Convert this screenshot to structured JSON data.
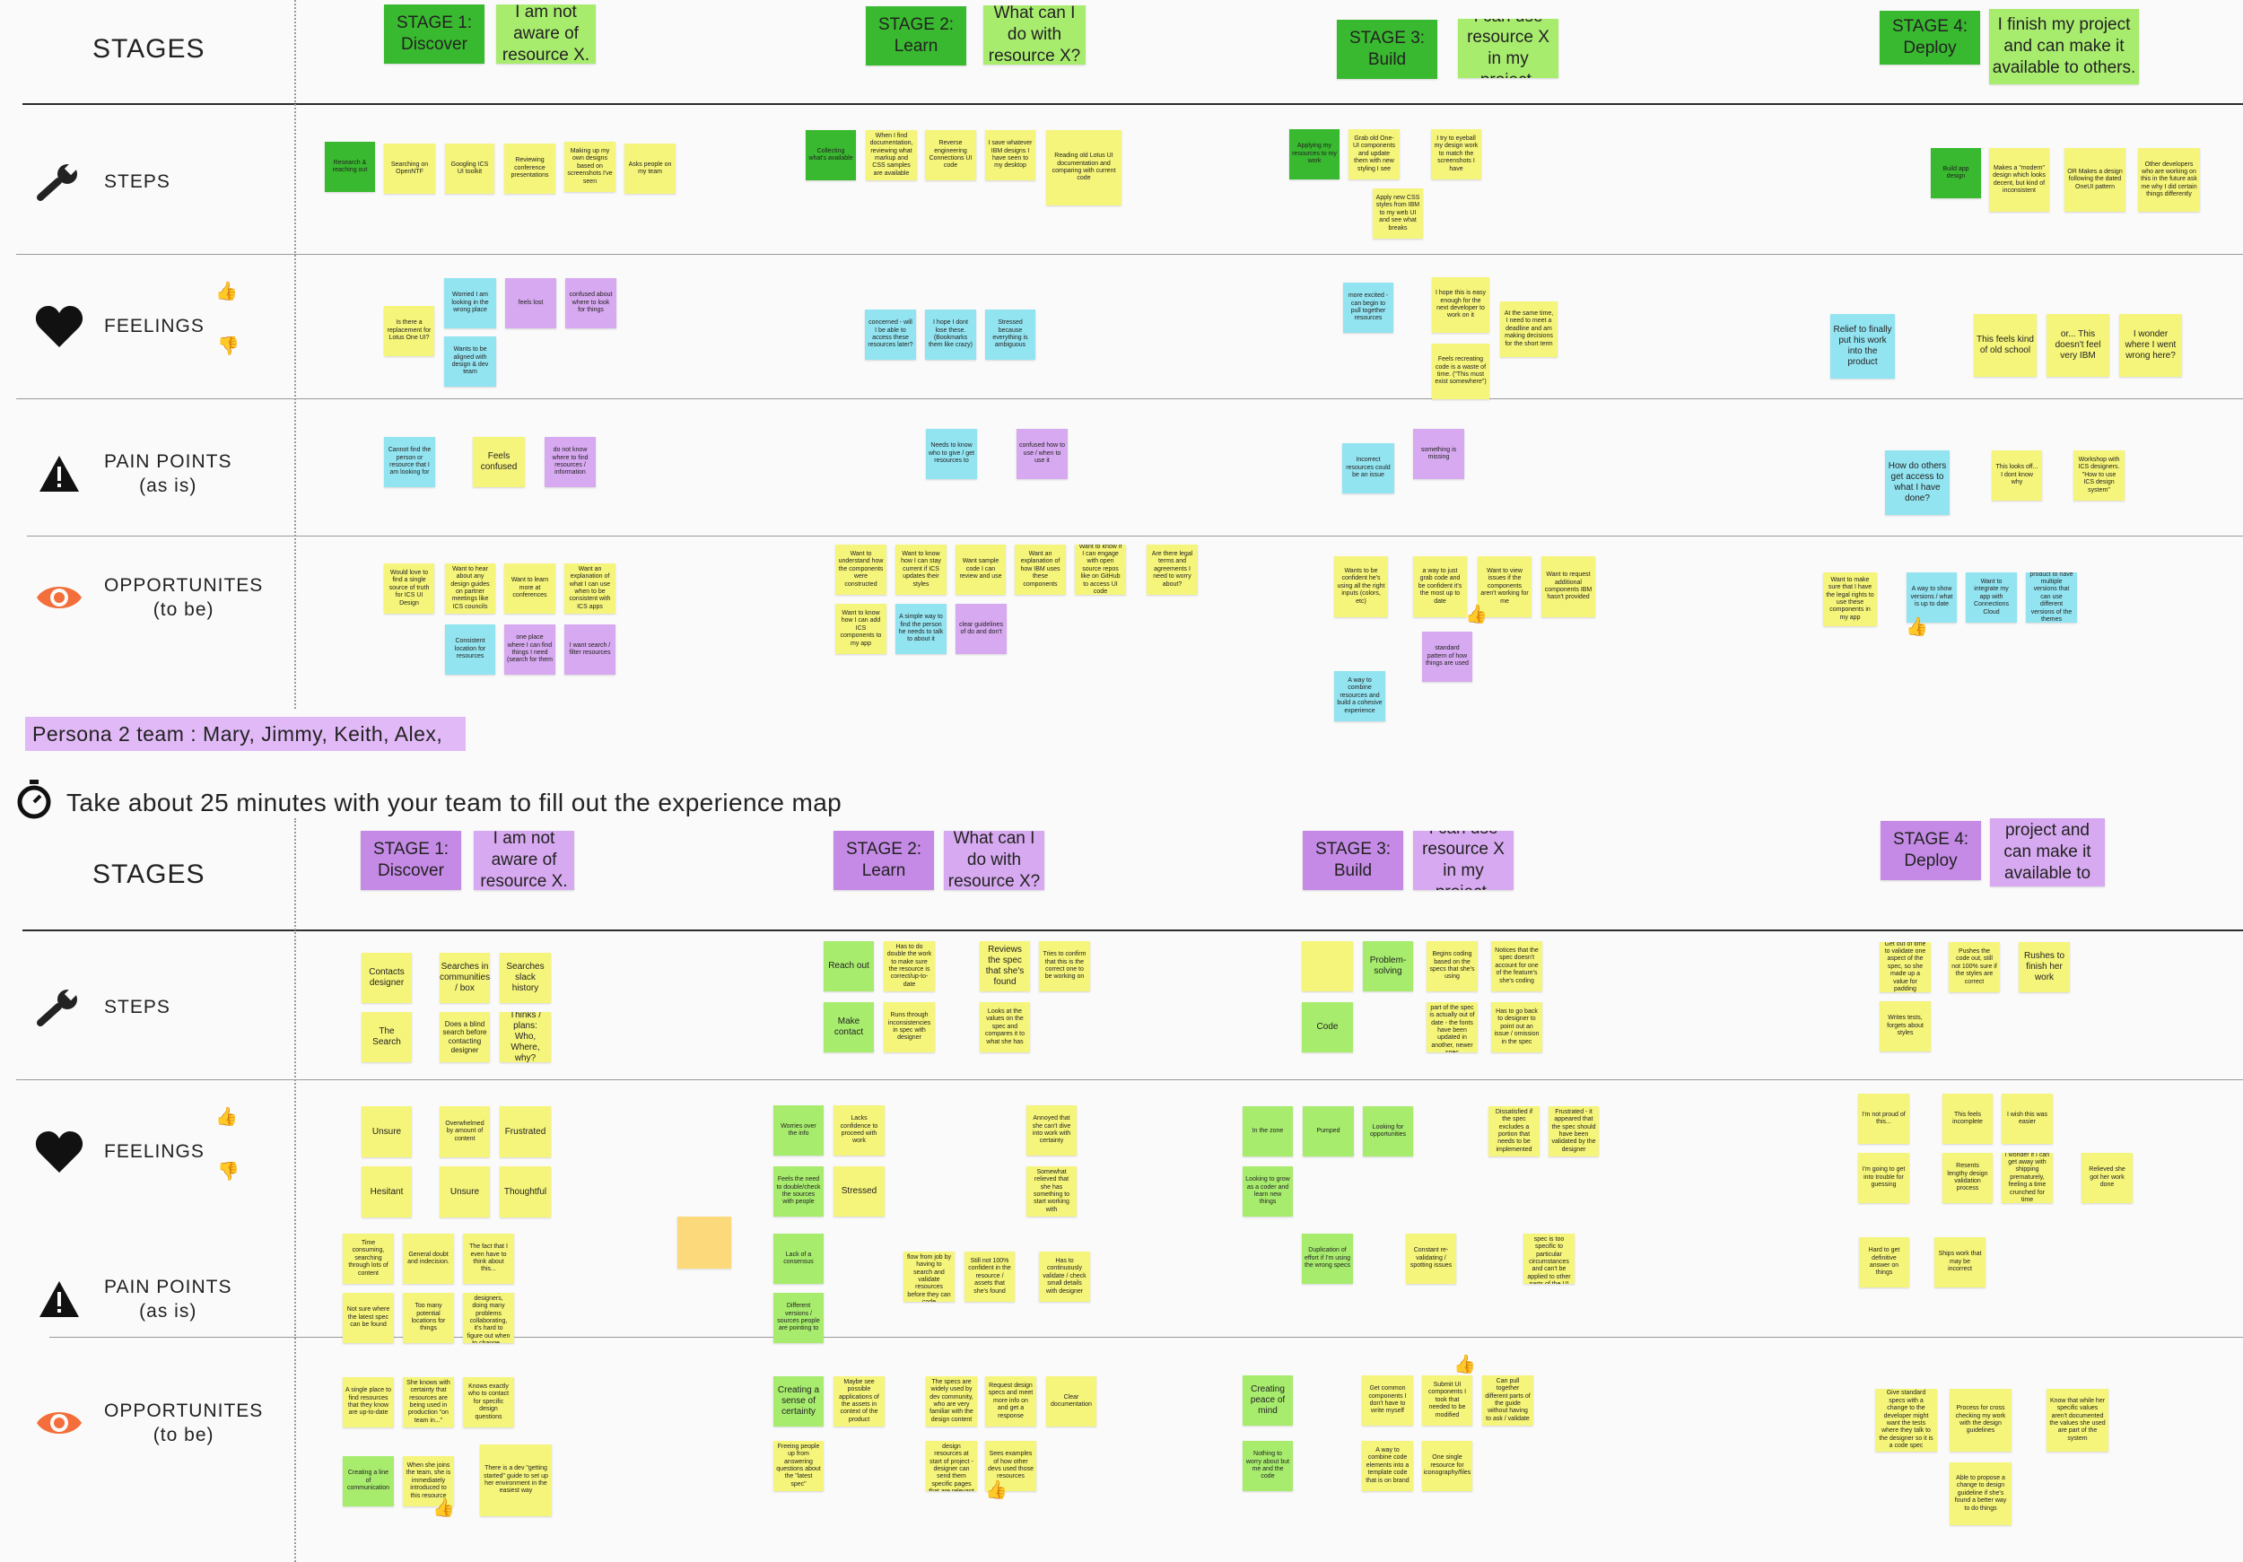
{
  "row_labels": {
    "stages": "STAGES",
    "steps": "STEPS",
    "feelings": "FEELINGS",
    "pain_points": "PAIN POINTS",
    "pain_points_sub": "(as is)",
    "opportunities": "OPPORTUNITES",
    "opportunities_sub": "(to be)"
  },
  "persona_label": "Persona 2 team : Mary, Jimmy, Keith, Alex,",
  "instruction": "Take about 25 minutes with your team to fill out the experience map",
  "colors": {
    "green": "#39b92f",
    "light_green": "#a8ec6e",
    "yellow": "#f6f57b",
    "blue": "#93e4f1",
    "purple": "#d7a9f0",
    "dark_purple": "#c58ae6",
    "orange": "#fcd97a"
  },
  "icons": {
    "steps": "wrench-icon",
    "feelings": "heart-icon",
    "pain_points": "warning-icon",
    "opportunities": "eye-icon",
    "timer": "stopwatch-icon",
    "thumb_up": "thumbs-up-icon",
    "thumb_down": "thumbs-down-icon"
  },
  "map1": {
    "stage_notes": [
      {
        "text": "STAGE 1: Discover"
      },
      {
        "text": "I am not aware of resource X."
      },
      {
        "text": "STAGE 2: Learn"
      },
      {
        "text": "What can I do with resource X?"
      },
      {
        "text": "STAGE 3: Build"
      },
      {
        "text": "I can use resource X in my project."
      },
      {
        "text": "STAGE 4: Deploy"
      },
      {
        "text": "I finish my project and can make it available to others."
      }
    ],
    "steps": [
      {
        "text": "Research & reaching out"
      },
      {
        "text": "Searching on OpenNTF"
      },
      {
        "text": "Googling ICS UI toolkit"
      },
      {
        "text": "Reviewing conference presentations"
      },
      {
        "text": "Making up my own designs based on screenshots I've seen"
      },
      {
        "text": "Asks people on my team"
      },
      {
        "text": "Collecting what's available"
      },
      {
        "text": "When I find documentation, reviewing what markup and CSS samples are available"
      },
      {
        "text": "Reverse engineering Connections UI code"
      },
      {
        "text": "I save whatever IBM designs I have seen to my desktop"
      },
      {
        "text": "Reading old Lotus UI documentation and comparing with current code"
      },
      {
        "text": "Applying my resources to my work"
      },
      {
        "text": "Grab old One-UI components and update them with new styling I see"
      },
      {
        "text": "I try to eyeball my design work to match the screenshots I have"
      },
      {
        "text": "Apply new CSS styles from IBM to my web UI and see what breaks"
      },
      {
        "text": "Build app design"
      },
      {
        "text": "Makes a \"modern\" design which looks decent, but kind of inconsistent"
      },
      {
        "text": "OR Makes a design following the dated OneUI pattern"
      },
      {
        "text": "Other developers who are working on this in the future ask me why I did certain things differently"
      }
    ],
    "feelings": [
      {
        "text": "Is there a replacement for Lotus One UI?"
      },
      {
        "text": "Worried I am looking in the wrong place"
      },
      {
        "text": "Wants to be aligned with design & dev team"
      },
      {
        "text": "feels lost"
      },
      {
        "text": "confused about where to look for things"
      },
      {
        "text": "concerned - will I be able to access these resources later?"
      },
      {
        "text": "I hope I dont lose these. (Bookmarks them like crazy)"
      },
      {
        "text": "Stressed because everything is ambiguous"
      },
      {
        "text": "more excited - can begin to pull together resources"
      },
      {
        "text": "I hope this is easy enough for the next developer to work on it"
      },
      {
        "text": "At the same time, I need to meet a deadline and am making decisions for the short term"
      },
      {
        "text": "Feels recreating code is a waste of time. (\"This must exist somewhere\")"
      },
      {
        "text": "Relief to finally put his work into the product"
      },
      {
        "text": "This feels kind of old school"
      },
      {
        "text": "or... This doesn't feel very IBM"
      },
      {
        "text": "I wonder where I went wrong here?"
      }
    ],
    "pain_points": [
      {
        "text": "Cannot find the person or resource that I am looking for"
      },
      {
        "text": "Feels confused"
      },
      {
        "text": "do not know where to find resources / information"
      },
      {
        "text": "Needs to know who to give / get resources to"
      },
      {
        "text": "confused how to use / when to use it"
      },
      {
        "text": "Incorrect resources could be an issue"
      },
      {
        "text": "something is missing"
      },
      {
        "text": "How do others get access to what I have done?"
      },
      {
        "text": "This looks off... I dont know why"
      },
      {
        "text": "Workshop with ICS designers. \"How to use ICS design system\""
      }
    ],
    "opportunities": [
      {
        "text": "Would love to find a single source of truth for ICS UI Design"
      },
      {
        "text": "Want to hear about any design guides on partner meetings like ICS councils"
      },
      {
        "text": "Want to learn more at conferences"
      },
      {
        "text": "Want an explanation of what I can use when to be consistent with ICS apps"
      },
      {
        "text": "Consistent location for resources"
      },
      {
        "text": "one place where I can find things I need (search for them"
      },
      {
        "text": "I want search / filter resources"
      },
      {
        "text": "Want to understand how the components were constructed"
      },
      {
        "text": "Want to know how I can stay current if ICS updates their styles"
      },
      {
        "text": "Want sample code I can review and use"
      },
      {
        "text": "Want an explanation of how IBM uses these components"
      },
      {
        "text": "Want to know if I can engage with open source repos like on GitHub to access UI code"
      },
      {
        "text": "Are there legal terms and agreements I need to worry about?"
      },
      {
        "text": "Want to know how I can add ICS components to my app"
      },
      {
        "text": "A simple way to find the person he needs to talk to about it"
      },
      {
        "text": "clear guidelines of do and don't"
      },
      {
        "text": "Wants to be confident he's using all the right inputs (colors, etc)"
      },
      {
        "text": "a way to just grab code and be confident it's the most up to date"
      },
      {
        "text": "Want to view issues if the components aren't working for me"
      },
      {
        "text": "Want to request additional components IBM hasn't provided"
      },
      {
        "text": "standard pattern of how things are used"
      },
      {
        "text": "A way to combine resources and build a cohesive experience"
      },
      {
        "text": "Want to make sure that I have the legal rights to use these components in my app"
      },
      {
        "text": "A way to show versions / what is up to date"
      },
      {
        "text": "Want to integrate my app with Connections Cloud"
      },
      {
        "text": "I may want product to have multiple versions that can use different versions of the themes available"
      }
    ]
  },
  "map2": {
    "stage_notes": [
      {
        "text": "STAGE 1: Discover"
      },
      {
        "text": "I am not aware of resource X."
      },
      {
        "text": "STAGE 2: Learn"
      },
      {
        "text": "What can I do with resource X?"
      },
      {
        "text": "STAGE 3: Build"
      },
      {
        "text": "I can use resource X in my project."
      },
      {
        "text": "STAGE 4: Deploy"
      },
      {
        "text": "I finish my project and can make it available to others."
      }
    ],
    "steps": [
      {
        "text": "Contacts designer"
      },
      {
        "text": "Searches in communities / box"
      },
      {
        "text": "Searches slack history"
      },
      {
        "text": "The Search"
      },
      {
        "text": "Does a blind search before contacting designer"
      },
      {
        "text": "Thinks / plans: Who, Where, why?"
      },
      {
        "text": "Reach out"
      },
      {
        "text": "Has to do double the work to make sure the resource is correct/up-to-date"
      },
      {
        "text": "Reviews the spec that she's found"
      },
      {
        "text": "Tries to confirm that this is the correct one to be working on"
      },
      {
        "text": "Make contact"
      },
      {
        "text": "Runs through inconsistencies in spec with designer"
      },
      {
        "text": "Looks at the values on the spec and compares it to what she has"
      },
      {
        "text": ""
      },
      {
        "text": "Problem-solving"
      },
      {
        "text": "Begins coding based on the specs that she's using"
      },
      {
        "text": "Notices that the spec doesn't account for one of the feature's she's coding"
      },
      {
        "text": "Code"
      },
      {
        "text": "Realizes that part of the spec is actually out of date - the fonts have been updated in another, newer spec"
      },
      {
        "text": "Has to go back to designer to point out an issue / omission in the spec"
      },
      {
        "text": "Get out of time to validate one aspect of the spec, so she made up a value for padding"
      },
      {
        "text": "Pushes the code out, still not 100% sure if the styles are correct"
      },
      {
        "text": "Rushes to finish her work"
      },
      {
        "text": "Writes tests, forgets about styles"
      }
    ],
    "feelings": [
      {
        "text": "Unsure"
      },
      {
        "text": "Overwhelmed by amount of content"
      },
      {
        "text": "Frustrated"
      },
      {
        "text": "Hesitant"
      },
      {
        "text": "Unsure"
      },
      {
        "text": "Thoughtful"
      },
      {
        "text": "Worries over the info"
      },
      {
        "text": "Lacks confidence to proceed with work"
      },
      {
        "text": "Annoyed that she can't dive into work with certainty"
      },
      {
        "text": "Feels the need to double/check the sources with people"
      },
      {
        "text": "Stressed"
      },
      {
        "text": "Somewhat relieved that she has something to start working with"
      },
      {
        "text": "In the zone"
      },
      {
        "text": "Pumped"
      },
      {
        "text": "Looking for opportunities"
      },
      {
        "text": "Dissatisfied if the spec excludes a portion that needs to be implemented"
      },
      {
        "text": "Frustrated - it appeared that the spec should have been validated by the designer"
      },
      {
        "text": "Looking to grow as a coder and learn new things"
      },
      {
        "text": "I'm not proud of this..."
      },
      {
        "text": "This feels incomplete"
      },
      {
        "text": "I wish this was easier"
      },
      {
        "text": "I'm going to get into trouble for guessing"
      },
      {
        "text": "Resents lengthy design validation process"
      },
      {
        "text": "I wonder if I can get away with shipping prematurely, feeling a time crunched for time"
      },
      {
        "text": "Relieved she got her work done"
      }
    ],
    "pain_points": [
      {
        "text": "Time consuming, searching through lots of content"
      },
      {
        "text": "General doubt and indecision."
      },
      {
        "text": "The fact that I even have to think about this..."
      },
      {
        "text": "Not sure where the latest spec can be found"
      },
      {
        "text": "Too many potential locations for things"
      },
      {
        "text": "With multiple designers, doing many problems collaborating, it's hard to figure out when to change..."
      },
      {
        "text": "Lack of a consensus"
      },
      {
        "text": "Different versions / sources people are pointing to"
      },
      {
        "text": "Distracted from flow from job by having to search and validate resources before they can code"
      },
      {
        "text": "Still not 100% confident in the resource / assets that she's found"
      },
      {
        "text": "Has to continuously validate / check small details with designer"
      },
      {
        "text": "Duplication of effort if I'm using the wrong specs"
      },
      {
        "text": "Constant re-validating / spotting issues"
      },
      {
        "text": "Sometimes a spec is too specific to particular circumstances and can't be applied to other parts of the UI"
      },
      {
        "text": "Hard to get definitive answer on things"
      },
      {
        "text": "Ships work that may be incorrect"
      }
    ],
    "opportunities": [
      {
        "text": "A single place to find resources that they know are up-to-date"
      },
      {
        "text": "She knows with certainty that resources are being used in production \"on team in...\""
      },
      {
        "text": "Knows exactly who to contact for specific design questions"
      },
      {
        "text": "Creating a line of communication"
      },
      {
        "text": "When she joins the team, she is immediately introduced to this resource"
      },
      {
        "text": "There is a dev \"getting started\" guide to set up her environment in the easiest way"
      },
      {
        "text": "Creating a sense of certainty"
      },
      {
        "text": "Maybe see possible applications of the assets in context of the product"
      },
      {
        "text": "The specs are widely used by dev community, who are very familiar with the design content"
      },
      {
        "text": "Request design specs and meet more info on and get a response"
      },
      {
        "text": "Clear documentation"
      },
      {
        "text": "Freeing people up from answering questions about the \"latest spec\""
      },
      {
        "text": "Introduced to design resources at start of project - designer can send them specific pages that are relevant"
      },
      {
        "text": "Sees examples of how other devs used those resources"
      },
      {
        "text": "Creating peace of mind"
      },
      {
        "text": "Get common components I don't have to write myself"
      },
      {
        "text": "Submit UI components I took that needed to be modified"
      },
      {
        "text": "Can pull together different parts of the guide without having to ask / validate"
      },
      {
        "text": "Nothing to worry about but me and the code"
      },
      {
        "text": "A way to combine code elements into a template code that is on brand"
      },
      {
        "text": "One single resource for iconography/files"
      },
      {
        "text": "Give standard specs with a change to the developer might want the tests where they talk to the designer so it is a code spec"
      },
      {
        "text": "Process for cross checking my work with the design guidelines"
      },
      {
        "text": "Know that while her specific values aren't documented the values she used are part of the system"
      },
      {
        "text": "Able to propose a change to design guideline if she's found a better way to do things"
      }
    ]
  }
}
